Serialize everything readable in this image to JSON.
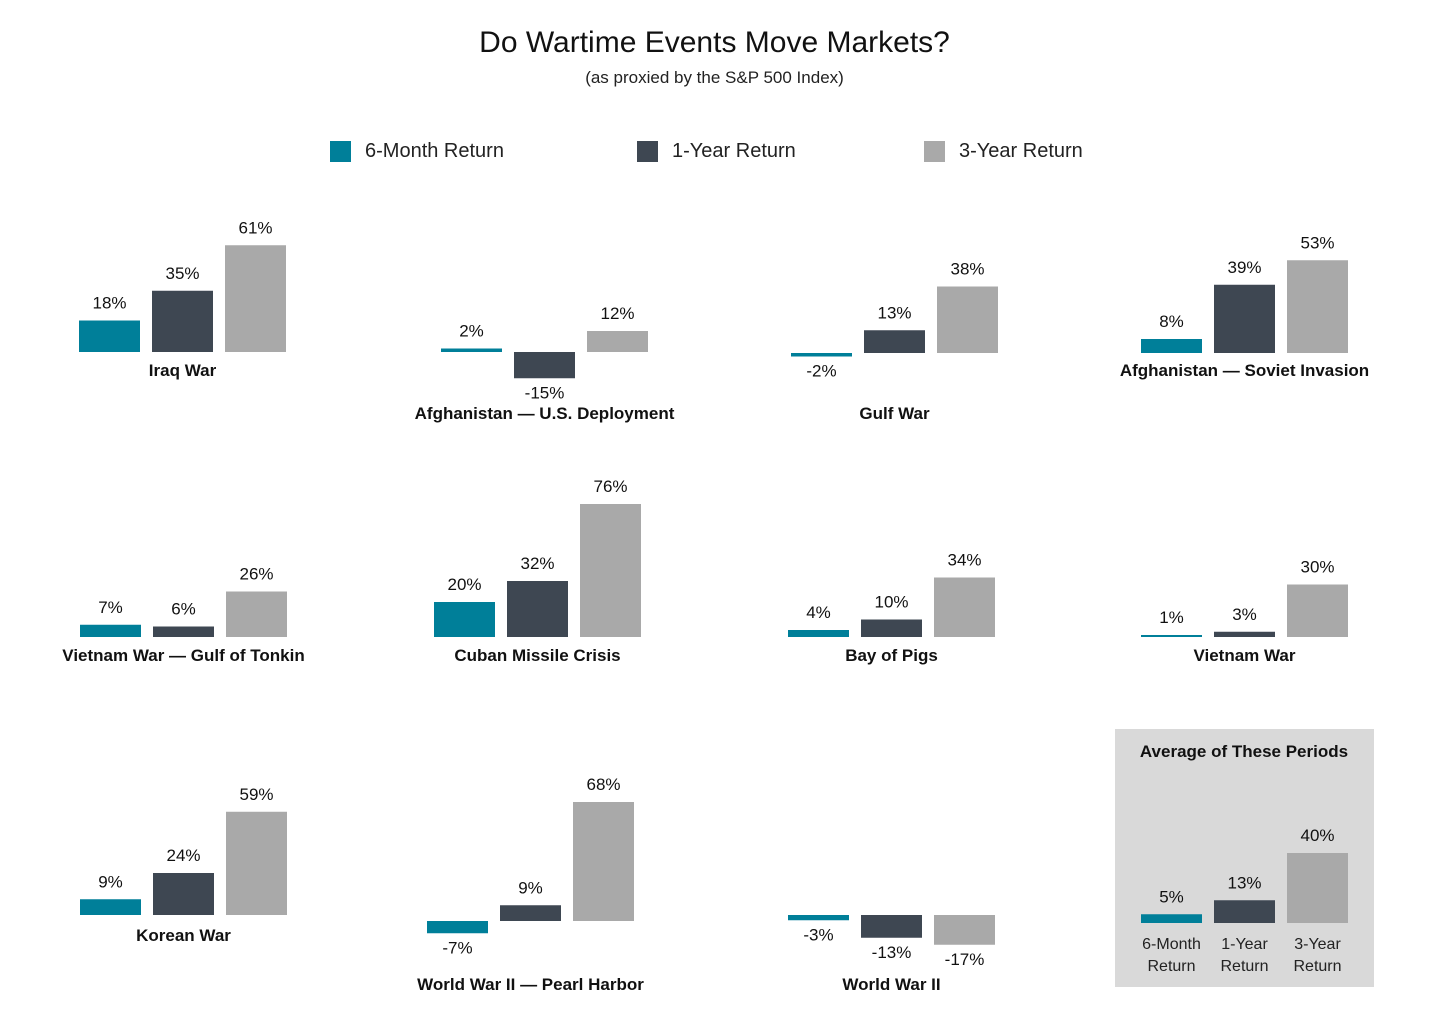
{
  "title": "Do Wartime Events Move Markets?",
  "subtitle": "(as proxied by the S&P 500 Index)",
  "colors": {
    "6m": "#007f99",
    "1y": "#3e4752",
    "3y": "#a9a9a9",
    "avg_box": "#d9d9d9"
  },
  "legend": [
    {
      "key": "6m",
      "label": "6-Month Return"
    },
    {
      "key": "1y",
      "label": "1-Year Return"
    },
    {
      "key": "3y",
      "label": "3-Year Return"
    }
  ],
  "chart_data": {
    "type": "bar",
    "title": "Do Wartime Events Move Markets?",
    "subtitle": "(as proxied by the S&P 500 Index)",
    "series_names": [
      "6-Month Return",
      "1-Year Return",
      "3-Year Return"
    ],
    "unit": "%",
    "panels": [
      {
        "name": "Iraq War",
        "values": [
          18,
          35,
          61
        ]
      },
      {
        "name": "Afghanistan — U.S. Deployment",
        "values": [
          2,
          -15,
          12
        ]
      },
      {
        "name": "Gulf War",
        "values": [
          -2,
          13,
          38
        ]
      },
      {
        "name": "Afghanistan — Soviet Invasion",
        "values": [
          8,
          39,
          53
        ]
      },
      {
        "name": "Vietnam War — Gulf of Tonkin",
        "values": [
          7,
          6,
          26
        ]
      },
      {
        "name": "Cuban Missile Crisis",
        "values": [
          20,
          32,
          76
        ]
      },
      {
        "name": "Bay of Pigs",
        "values": [
          4,
          10,
          34
        ]
      },
      {
        "name": "Vietnam War",
        "values": [
          1,
          3,
          30
        ]
      },
      {
        "name": "Korean War",
        "values": [
          9,
          24,
          59
        ]
      },
      {
        "name": "World War II — Pearl Harbor",
        "values": [
          -7,
          9,
          68
        ]
      },
      {
        "name": "World War II",
        "values": [
          -3,
          -13,
          -17
        ]
      }
    ],
    "average": {
      "title": "Average of These Periods",
      "values": [
        5,
        13,
        40
      ],
      "categories": [
        [
          "6-Month",
          "Return"
        ],
        [
          "1-Year",
          "Return"
        ],
        [
          "3-Year",
          "Return"
        ]
      ]
    }
  }
}
